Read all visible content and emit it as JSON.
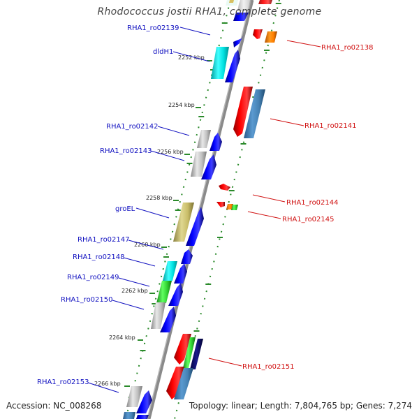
{
  "title": "Rhodococcus jostii RHA1, complete genome",
  "footer": {
    "accession": "Accession: NC_008268",
    "topology": "Topology: linear; Length: 7,804,765 bp; Genes: 7,274"
  },
  "scale_labels": [
    "2252 kbp",
    "2254 kbp",
    "2256 kbp",
    "2258 kbp",
    "2260 kbp",
    "2262 kbp",
    "2264 kbp",
    "2266 kbp"
  ],
  "genes_left": [
    "RHA1_ro02139",
    "dldH1",
    "RHA1_ro02142",
    "RHA1_ro02143",
    "groEL",
    "RHA1_ro02147",
    "RHA1_ro02148",
    "RHA1_ro02149",
    "RHA1_ro02150",
    "RHA1_ro02153"
  ],
  "genes_right": [
    "RHA1_ro02138",
    "RHA1_ro02141",
    "RHA1_ro02144",
    "RHA1_ro02145",
    "RHA1_ro02151"
  ],
  "colors": {
    "left_label": "#1010c0",
    "right_label": "#d01010",
    "scale_tick": "#2a8a2a",
    "backbone": "#8a8a8a"
  }
}
